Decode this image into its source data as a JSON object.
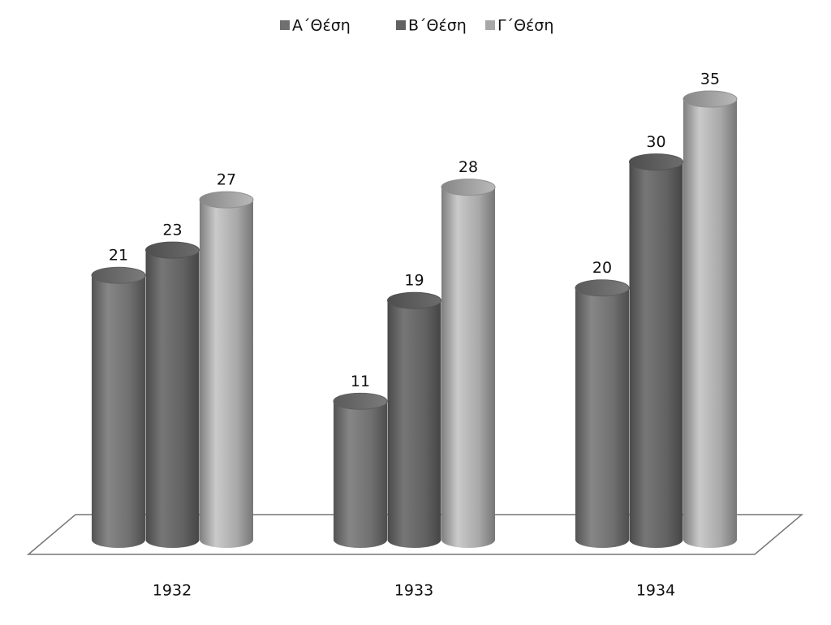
{
  "chart_data": {
    "type": "bar",
    "categories": [
      "1932",
      "1933",
      "1934"
    ],
    "series": [
      {
        "name": "Α΄Θέση",
        "color": "#707070",
        "values": [
          21,
          11,
          20
        ]
      },
      {
        "name": "Β΄Θέση",
        "color": "#626262",
        "values": [
          23,
          19,
          30
        ]
      },
      {
        "name": "Γ΄Θέση",
        "color": "#a8a8a8",
        "values": [
          27,
          28,
          35
        ]
      }
    ],
    "legend": "top"
  }
}
